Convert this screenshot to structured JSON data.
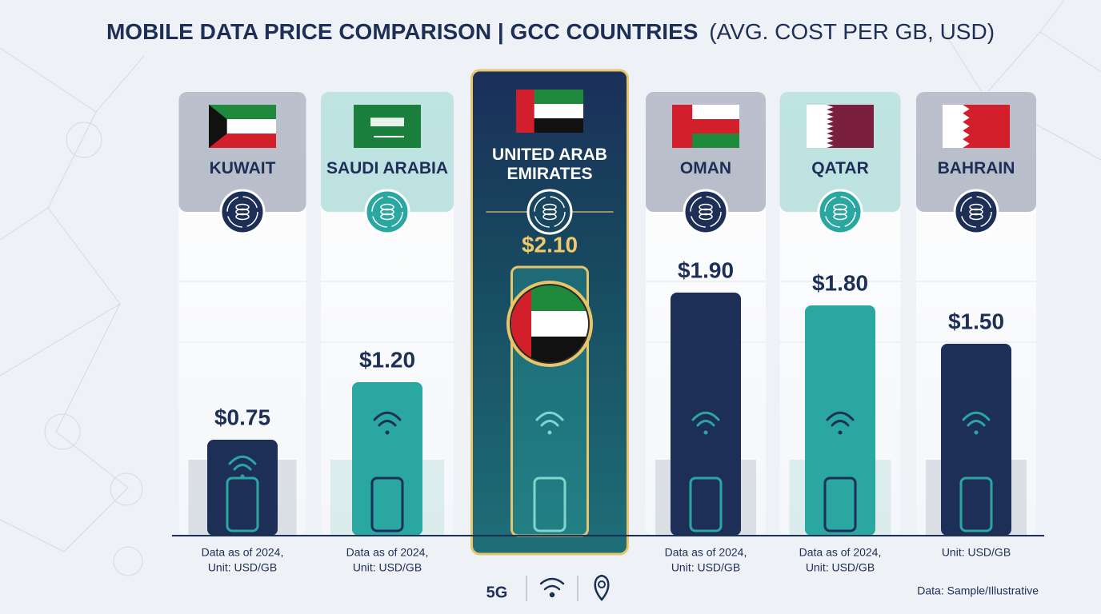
{
  "chart_data": {
    "type": "bar",
    "title": "MOBILE DATA PRICE COMPARISON | GCC COUNTRIES",
    "subtitle": "(AVG. COST PER GB, USD)",
    "categories": [
      "KUWAIT",
      "SAUDI ARABIA",
      "UNITED ARAB EMIRATES",
      "OMAN",
      "QATAR",
      "BAHRAIN"
    ],
    "values": [
      0.75,
      1.2,
      2.1,
      1.9,
      1.8,
      1.5
    ],
    "value_labels": [
      "$0.75",
      "$1.20",
      "$2.10",
      "$1.90",
      "$1.80",
      "$1.50"
    ],
    "colors": [
      "#1d2f57",
      "#2aa7a0",
      "#2aa7a0",
      "#1d2f57",
      "#2aa7a0",
      "#1d2f57"
    ],
    "highlight_index": 2,
    "notes": [
      [
        "Data as of 2024,",
        "Unit: USD/GB"
      ],
      [
        "Data as of 2024,",
        "Unit: USD/GB"
      ],
      null,
      [
        "Data as of 2024,",
        "Unit: USD/GB"
      ],
      [
        "Data as of 2024,",
        "Unit: USD/GB"
      ],
      [
        "Unit: USD/GB"
      ]
    ],
    "footer_badge": "5G",
    "source": "Data: Sample/Illustrative"
  }
}
